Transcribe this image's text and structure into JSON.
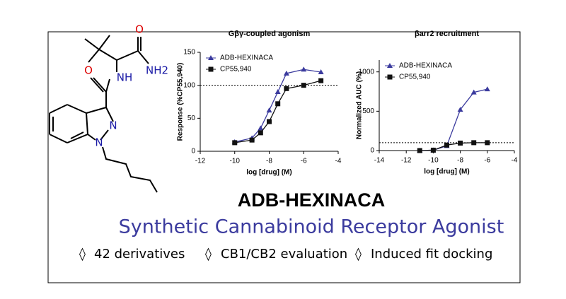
{
  "structure": {
    "atoms": [
      "O",
      "NH2",
      "NH",
      "O",
      "N",
      "N"
    ]
  },
  "compound": "ADB-HEXINACA",
  "subtitle": "Synthetic Cannabinoid Receptor Agonist",
  "features": [
    "◊",
    "42 derivatives",
    "◊",
    "CB1/CB2 evaluation",
    "◊",
    "Induced fit docking"
  ],
  "chart_data": [
    {
      "type": "line",
      "title": "Gβγ-coupled agonism",
      "x_label": "log [drug] (M)",
      "y_label": "Response (%CP55,940)",
      "xlim": [
        -12,
        -4
      ],
      "xticks": [
        -12,
        -10,
        -8,
        -6,
        -4
      ],
      "ylim": [
        0,
        150
      ],
      "yticks": [
        0,
        50,
        100,
        150
      ],
      "reference_line": 100,
      "series": [
        {
          "name": "ADB-HEXINACA",
          "color": "#3b3b9e",
          "marker": "triangle",
          "x": [
            -10,
            -9,
            -8.5,
            -8,
            -7.5,
            -7,
            -6,
            -5
          ],
          "values": [
            14,
            20,
            35,
            62,
            90,
            118,
            124,
            120
          ]
        },
        {
          "name": "CP55,940",
          "color": "#111111",
          "marker": "square",
          "x": [
            -10,
            -9,
            -8.5,
            -8,
            -7.5,
            -7,
            -6,
            -5
          ],
          "values": [
            13,
            17,
            28,
            45,
            72,
            95,
            100,
            107
          ]
        }
      ]
    },
    {
      "type": "line",
      "title": "βarr2 recruitment",
      "x_label": "log [drug] (M)",
      "y_label": "Normalized AUC (%)",
      "xlim": [
        -14,
        -4
      ],
      "xticks": [
        -14,
        -12,
        -10,
        -8,
        -6,
        -4
      ],
      "ylim": [
        0,
        1150
      ],
      "yticks": [
        0,
        500,
        1000
      ],
      "reference_line": 100,
      "series": [
        {
          "name": "ADB-HEXINACA",
          "color": "#3b3b9e",
          "marker": "triangle",
          "x": [
            -11,
            -10,
            -9,
            -8,
            -7,
            -6
          ],
          "values": [
            0,
            5,
            60,
            520,
            740,
            780
          ]
        },
        {
          "name": "CP55,940",
          "color": "#111111",
          "marker": "square",
          "x": [
            -11,
            -10,
            -9,
            -8,
            -7,
            -6
          ],
          "values": [
            0,
            5,
            70,
            95,
            100,
            100
          ]
        }
      ]
    }
  ]
}
